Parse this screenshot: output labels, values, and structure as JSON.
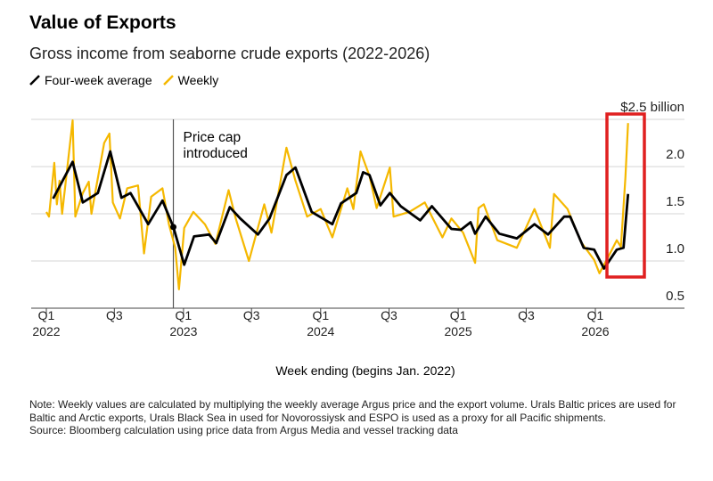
{
  "title": "Value of Exports",
  "subtitle": "Gross income from seaborne crude exports (2022-2026)",
  "legend": [
    {
      "label": "Four-week average",
      "color": "#000000"
    },
    {
      "label": "Weekly",
      "color": "#F5B800"
    }
  ],
  "annotation": {
    "price_cap": "Price cap",
    "price_cap_2": "introduced",
    "price_cap_date": "2022-12-05"
  },
  "highlight_color": "#E02020",
  "note": "Note: Weekly values are calculated by multiplying the weekly average Argus price and the export volume. Urals Baltic prices are used for Baltic and Arctic exports, Urals Black Sea in used for Novorossiysk and ESPO is used as a proxy for all Pacific shipments.",
  "source": "Source: Bloomberg calculation using price data from Argus Media and vessel tracking data",
  "chart_data": {
    "type": "line",
    "title": "Value of Exports",
    "xlabel": "Week ending (begins Jan. 2022)",
    "ylabel": "",
    "ylim": [
      0.5,
      2.5
    ],
    "xlim": [
      "2021-11-25",
      "2026-06-30"
    ],
    "grid": true,
    "legend_position": "top-left",
    "y_ticks": [
      {
        "value": 2.5,
        "label": "$2.5 billion"
      },
      {
        "value": 2.0,
        "label": "2.0"
      },
      {
        "value": 1.5,
        "label": "1.5"
      },
      {
        "value": 1.0,
        "label": "1.0"
      },
      {
        "value": 0.5,
        "label": "0.5"
      }
    ],
    "x_ticks": [
      {
        "date": "2022-01-01",
        "label": "Q1",
        "year": "2022"
      },
      {
        "date": "2022-07-01",
        "label": "Q3",
        "year": ""
      },
      {
        "date": "2023-01-01",
        "label": "Q1",
        "year": "2023"
      },
      {
        "date": "2023-07-01",
        "label": "Q3",
        "year": ""
      },
      {
        "date": "2024-01-01",
        "label": "Q1",
        "year": "2024"
      },
      {
        "date": "2024-07-01",
        "label": "Q3",
        "year": ""
      },
      {
        "date": "2025-01-01",
        "label": "Q1",
        "year": "2025"
      },
      {
        "date": "2025-07-01",
        "label": "Q3",
        "year": ""
      },
      {
        "date": "2026-01-01",
        "label": "Q1",
        "year": "2026"
      }
    ],
    "series": [
      {
        "name": "Weekly",
        "color": "#F5B800",
        "points": [
          [
            "2022-01-01",
            1.52
          ],
          [
            "2022-01-08",
            1.47
          ],
          [
            "2022-01-22",
            2.04
          ],
          [
            "2022-01-29",
            1.6
          ],
          [
            "2022-02-05",
            1.85
          ],
          [
            "2022-02-12",
            1.5
          ],
          [
            "2022-03-12",
            2.49
          ],
          [
            "2022-03-19",
            1.47
          ],
          [
            "2022-04-08",
            1.72
          ],
          [
            "2022-04-24",
            1.84
          ],
          [
            "2022-05-01",
            1.5
          ],
          [
            "2022-06-04",
            2.25
          ],
          [
            "2022-06-18",
            2.35
          ],
          [
            "2022-06-27",
            1.62
          ],
          [
            "2022-07-16",
            1.45
          ],
          [
            "2022-08-04",
            1.77
          ],
          [
            "2022-09-02",
            1.8
          ],
          [
            "2022-09-18",
            1.08
          ],
          [
            "2022-10-07",
            1.68
          ],
          [
            "2022-11-06",
            1.77
          ],
          [
            "2022-11-23",
            1.39
          ],
          [
            "2022-12-10",
            1.14
          ],
          [
            "2022-12-20",
            0.7
          ],
          [
            "2023-01-03",
            1.35
          ],
          [
            "2023-01-27",
            1.52
          ],
          [
            "2023-02-27",
            1.39
          ],
          [
            "2023-03-27",
            1.18
          ],
          [
            "2023-05-01",
            1.75
          ],
          [
            "2023-05-20",
            1.45
          ],
          [
            "2023-06-24",
            1.0
          ],
          [
            "2023-08-04",
            1.6
          ],
          [
            "2023-08-23",
            1.3
          ],
          [
            "2023-10-02",
            2.2
          ],
          [
            "2023-10-26",
            1.85
          ],
          [
            "2023-11-26",
            1.47
          ],
          [
            "2024-01-01",
            1.55
          ],
          [
            "2024-02-01",
            1.25
          ],
          [
            "2024-03-12",
            1.77
          ],
          [
            "2024-03-28",
            1.55
          ],
          [
            "2024-04-16",
            2.16
          ],
          [
            "2024-05-10",
            1.9
          ],
          [
            "2024-05-29",
            1.56
          ],
          [
            "2024-07-03",
            1.99
          ],
          [
            "2024-07-13",
            1.47
          ],
          [
            "2024-08-24",
            1.52
          ],
          [
            "2024-10-04",
            1.62
          ],
          [
            "2024-11-20",
            1.25
          ],
          [
            "2024-12-14",
            1.45
          ],
          [
            "2025-01-14",
            1.3
          ],
          [
            "2025-02-15",
            0.98
          ],
          [
            "2025-02-24",
            1.56
          ],
          [
            "2025-03-10",
            1.6
          ],
          [
            "2025-04-15",
            1.22
          ],
          [
            "2025-06-06",
            1.14
          ],
          [
            "2025-07-23",
            1.55
          ],
          [
            "2025-09-02",
            1.14
          ],
          [
            "2025-09-13",
            1.71
          ],
          [
            "2025-10-19",
            1.55
          ],
          [
            "2025-11-24",
            1.2
          ],
          [
            "2025-12-29",
            1.01
          ],
          [
            "2026-01-12",
            0.87
          ],
          [
            "2026-02-05",
            1.05
          ],
          [
            "2026-02-27",
            1.22
          ],
          [
            "2026-03-10",
            1.15
          ],
          [
            "2026-03-22",
            1.88
          ],
          [
            "2026-03-29",
            2.46
          ]
        ]
      },
      {
        "name": "Four-week average",
        "color": "#000000",
        "points": [
          [
            "2022-01-19",
            1.66
          ],
          [
            "2022-03-12",
            2.05
          ],
          [
            "2022-04-08",
            1.62
          ],
          [
            "2022-05-18",
            1.72
          ],
          [
            "2022-06-20",
            2.16
          ],
          [
            "2022-07-20",
            1.67
          ],
          [
            "2022-08-13",
            1.72
          ],
          [
            "2022-09-29",
            1.39
          ],
          [
            "2022-11-06",
            1.64
          ],
          [
            "2022-12-05",
            1.36
          ],
          [
            "2023-01-03",
            0.96
          ],
          [
            "2023-01-29",
            1.26
          ],
          [
            "2023-03-10",
            1.28
          ],
          [
            "2023-03-29",
            1.19
          ],
          [
            "2023-05-04",
            1.57
          ],
          [
            "2023-06-01",
            1.45
          ],
          [
            "2023-07-18",
            1.28
          ],
          [
            "2023-08-18",
            1.45
          ],
          [
            "2023-10-02",
            1.91
          ],
          [
            "2023-10-26",
            1.99
          ],
          [
            "2023-12-08",
            1.52
          ],
          [
            "2024-02-01",
            1.39
          ],
          [
            "2024-02-24",
            1.61
          ],
          [
            "2024-04-05",
            1.72
          ],
          [
            "2024-04-23",
            1.94
          ],
          [
            "2024-05-10",
            1.91
          ],
          [
            "2024-06-08",
            1.59
          ],
          [
            "2024-07-03",
            1.72
          ],
          [
            "2024-08-01",
            1.58
          ],
          [
            "2024-09-22",
            1.43
          ],
          [
            "2024-10-23",
            1.58
          ],
          [
            "2024-12-14",
            1.34
          ],
          [
            "2025-01-08",
            1.33
          ],
          [
            "2025-02-03",
            1.41
          ],
          [
            "2025-02-15",
            1.29
          ],
          [
            "2025-03-15",
            1.47
          ],
          [
            "2025-04-20",
            1.29
          ],
          [
            "2025-06-06",
            1.24
          ],
          [
            "2025-07-23",
            1.39
          ],
          [
            "2025-08-28",
            1.28
          ],
          [
            "2025-10-10",
            1.47
          ],
          [
            "2025-10-26",
            1.47
          ],
          [
            "2025-12-01",
            1.14
          ],
          [
            "2025-12-29",
            1.12
          ],
          [
            "2026-01-24",
            0.92
          ],
          [
            "2026-02-27",
            1.12
          ],
          [
            "2026-03-17",
            1.14
          ],
          [
            "2026-03-29",
            1.71
          ]
        ]
      }
    ]
  }
}
